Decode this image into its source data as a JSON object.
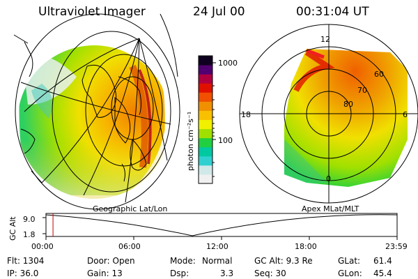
{
  "header": {
    "title": "Ultraviolet Imager",
    "date": "24 Jul 00",
    "time": "00:31:04 UT"
  },
  "colorbar": {
    "unit_label": "photon cm⁻²s⁻¹",
    "ticks": [
      "1000",
      "100"
    ],
    "colors": [
      "#f0f0f0",
      "#d0e8e8",
      "#30d0d0",
      "#00c8a0",
      "#20d040",
      "#a0e000",
      "#f0f000",
      "#f8c000",
      "#f09000",
      "#f05000",
      "#e01000",
      "#b00040",
      "#500070",
      "#100020"
    ]
  },
  "left_panel": {
    "caption": "Geographic Lat/Lon"
  },
  "right_panel": {
    "caption": "Apex MLat/MLT",
    "mlt_labels": {
      "top": "12",
      "left": "18",
      "right": "6",
      "bottom": "0"
    },
    "lat_labels": [
      "60",
      "70",
      "80"
    ]
  },
  "altitude_plot": {
    "ylabel": "GC Alt",
    "yticks": [
      "9.0",
      "1.8"
    ],
    "xticks": [
      "00:00",
      "06:00",
      "12:00",
      "18:00",
      "23:59"
    ],
    "current_time_fraction": 0.02
  },
  "info": {
    "flt": "Flt: 1304",
    "ip": "IP: 36.0",
    "door": "Door: Open",
    "gain": "Gain: 13",
    "mode_label": "Mode:",
    "mode_value": "Normal",
    "dsp_label": "Dsp:",
    "dsp_value": "3.3",
    "gcalt": "GC Alt: 9.3 Re",
    "seq": "Seq: 30",
    "glat_label": "GLat:",
    "glat_value": "61.4",
    "glon_label": "GLon:",
    "glon_value": "45.4"
  }
}
